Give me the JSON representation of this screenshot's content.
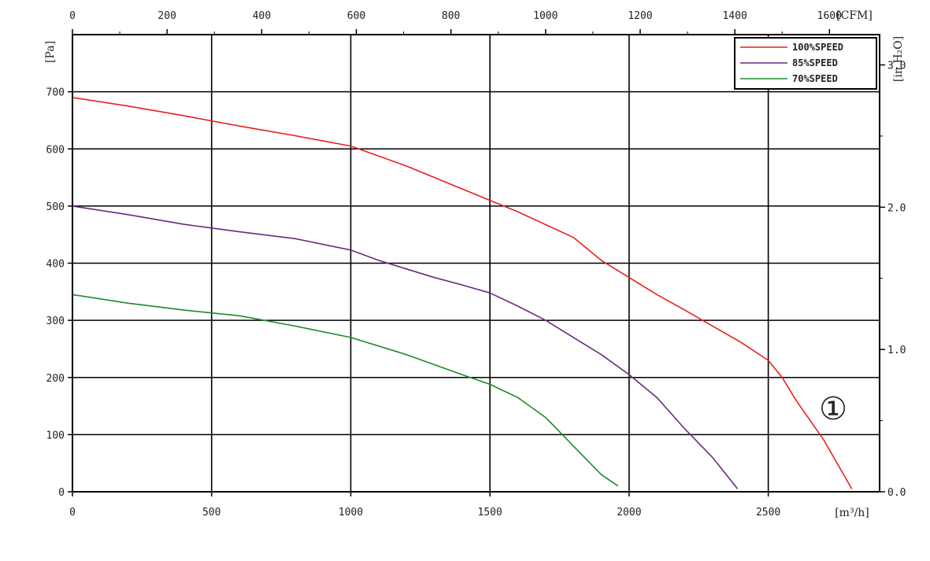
{
  "chart_data": {
    "type": "line",
    "title": "",
    "xlabel": "[m³/h]",
    "ylabel": "[Pa]",
    "x_top_label": "[CFM]",
    "y_right_label": "[in H₂O]",
    "xlim": [
      0,
      2900
    ],
    "ylim": [
      0,
      800
    ],
    "x_top_lim": [
      0,
      1706
    ],
    "y_right_lim": [
      0,
      3.213
    ],
    "grid": true,
    "legend": "top-right",
    "x_ticks": [
      0,
      500,
      1000,
      1500,
      2000,
      2500
    ],
    "y_ticks": [
      0,
      100,
      200,
      300,
      400,
      500,
      600,
      700
    ],
    "x_top_ticks": [
      0,
      200,
      400,
      600,
      800,
      1000,
      1200,
      1400,
      1600
    ],
    "y_right_ticks": [
      0.0,
      1.0,
      2.0,
      3.0
    ],
    "y_right_tick_labels": [
      "0.0",
      "1.0",
      "2.0",
      "3.0"
    ],
    "annotation": "①",
    "series": [
      {
        "name": "100%SPEED",
        "color": "#e8201c",
        "x": [
          0,
          200,
          400,
          600,
          800,
          1000,
          1200,
          1400,
          1600,
          1800,
          1900,
          2000,
          2100,
          2200,
          2300,
          2400,
          2500,
          2550,
          2600,
          2700,
          2800
        ],
        "y": [
          690,
          675,
          658,
          640,
          623,
          605,
          570,
          530,
          490,
          445,
          405,
          375,
          345,
          318,
          290,
          262,
          230,
          200,
          160,
          90,
          5
        ]
      },
      {
        "name": "85%SPEED",
        "color": "#6a2a80",
        "x": [
          0,
          200,
          400,
          600,
          800,
          1000,
          1100,
          1200,
          1300,
          1400,
          1500,
          1600,
          1700,
          1800,
          1900,
          2000,
          2100,
          2200,
          2300,
          2390
        ],
        "y": [
          500,
          485,
          468,
          455,
          443,
          423,
          405,
          390,
          375,
          362,
          348,
          325,
          300,
          270,
          240,
          205,
          165,
          110,
          60,
          5
        ]
      },
      {
        "name": "70%SPEED",
        "color": "#1e8a28",
        "x": [
          0,
          200,
          400,
          600,
          800,
          1000,
          1200,
          1400,
          1500,
          1600,
          1700,
          1800,
          1900,
          1960
        ],
        "y": [
          345,
          330,
          318,
          308,
          290,
          270,
          240,
          205,
          188,
          165,
          130,
          80,
          30,
          10
        ]
      }
    ]
  }
}
